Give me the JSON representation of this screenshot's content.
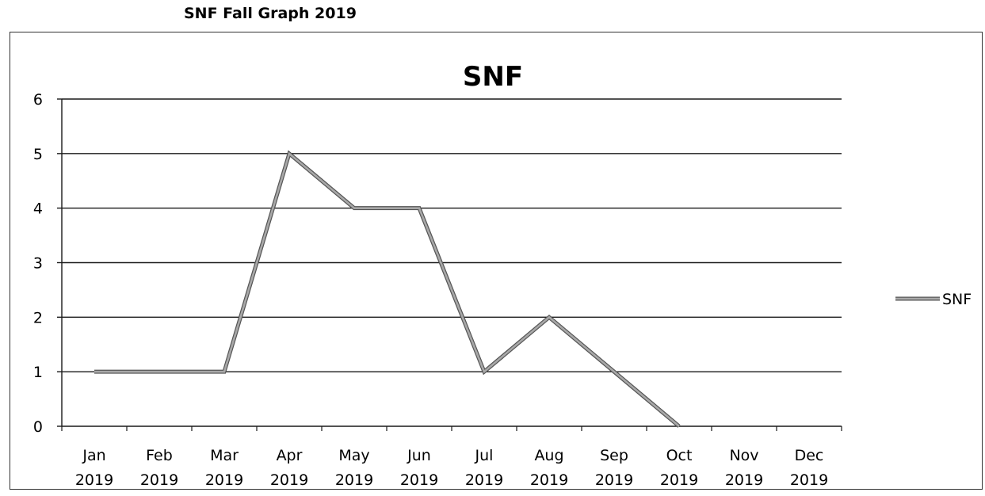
{
  "page": {
    "title": "SNF Fall Graph 2019"
  },
  "chart_data": {
    "type": "line",
    "title": "SNF",
    "xlabel": "",
    "ylabel": "",
    "ylim": [
      0,
      6
    ],
    "yticks": [
      0,
      1,
      2,
      3,
      4,
      5,
      6
    ],
    "grid": true,
    "legend_position": "right",
    "categories": [
      [
        "Jan",
        "2019"
      ],
      [
        "Feb",
        "2019"
      ],
      [
        "Mar",
        "2019"
      ],
      [
        "Apr",
        "2019"
      ],
      [
        "May",
        "2019"
      ],
      [
        "Jun",
        "2019"
      ],
      [
        "Jul",
        "2019"
      ],
      [
        "Aug",
        "2019"
      ],
      [
        "Sep",
        "2019"
      ],
      [
        "Oct",
        "2019"
      ],
      [
        "Nov",
        "2019"
      ],
      [
        "Dec",
        "2019"
      ]
    ],
    "series": [
      {
        "name": "SNF",
        "color": "#a8a8a8",
        "values": [
          1,
          1,
          1,
          5,
          4,
          4,
          1,
          2,
          1,
          0,
          null,
          null
        ]
      }
    ]
  }
}
